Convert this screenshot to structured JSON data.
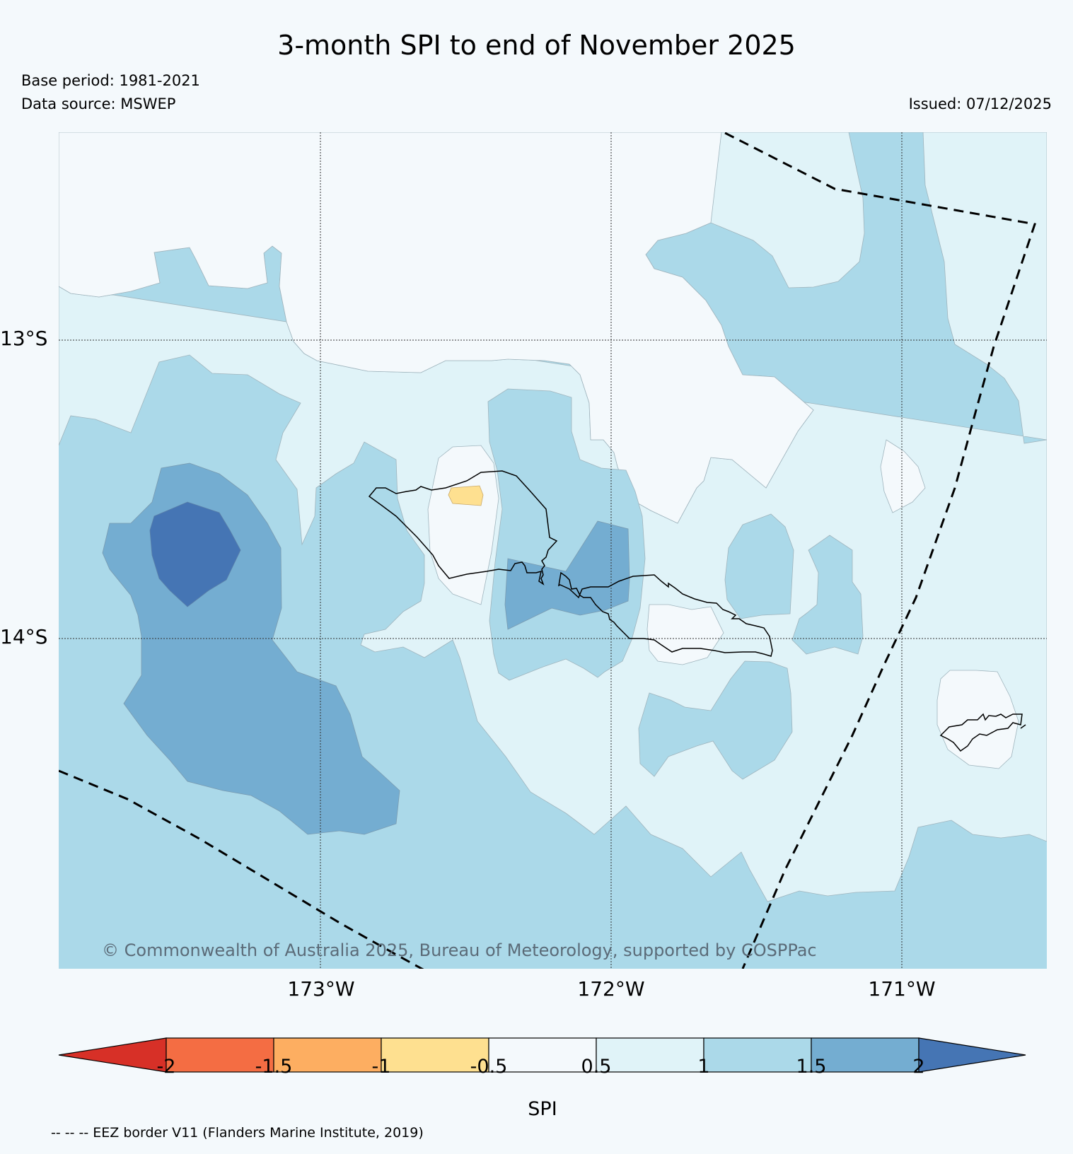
{
  "title": "3-month SPI to end of November 2025",
  "base_period": "Base period: 1981-2021",
  "data_source": "Data source: MSWEP",
  "issued": "Issued: 07/12/2025",
  "copyright": "© Commonwealth of Australia 2025, Bureau of Meteorology, supported by COSPPac",
  "axes": {
    "lon_labels": [
      "173°W",
      "172°W",
      "171°W"
    ],
    "lat_labels": [
      "13°S",
      "14°S"
    ]
  },
  "colorbar": {
    "title": "SPI",
    "tick_labels": [
      "-2",
      "-1.5",
      "-1",
      "-0.5",
      "0.5",
      "1",
      "1.5",
      "2"
    ],
    "colors": [
      "#d73027",
      "#f46d43",
      "#fdae61",
      "#fee090",
      "#f4f9fc",
      "#e0f3f8",
      "#abd9e9",
      "#74add1",
      "#4575b4"
    ]
  },
  "legend_note": "-- -- -- EEZ border V11 (Flanders Marine Institute, 2019)"
}
